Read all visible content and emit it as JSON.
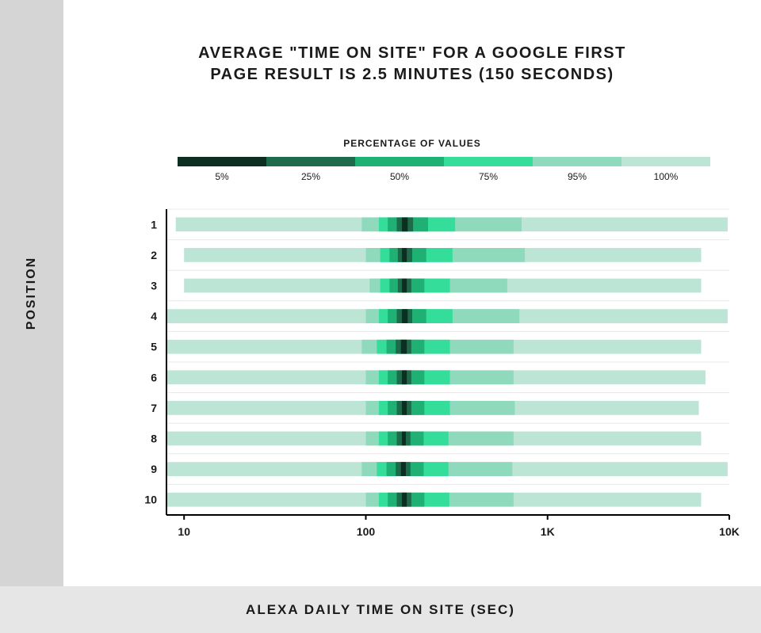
{
  "layout": {
    "sidebar_bg": "#d5d5d5",
    "footer_bg": "#e6e6e6",
    "title_color": "#1a1a1a",
    "label_color": "#1a1a1a",
    "tick_color": "#1a1a1a",
    "axis_color": "#000000",
    "grid_color": "#e8e8e8",
    "title_fontsize": 20,
    "ylabel_fontsize": 16,
    "xlabel_fontsize": 17,
    "legend_title_fontsize": 12,
    "legend_label_fontsize": 12,
    "tick_fontsize": 14,
    "legend_item_width": 112
  },
  "title_line1": "AVERAGE \"TIME ON SITE\" FOR A GOOGLE FIRST",
  "title_line2": "PAGE RESULT IS 2.5 MINUTES (150 SECONDS)",
  "y_axis_label": "POSITION",
  "x_axis_label": "ALEXA DAILY TIME ON SITE (SEC)",
  "legend_title": "PERCENTAGE OF VALUES",
  "legend": [
    {
      "label": "5%",
      "color": "#0c2f22"
    },
    {
      "label": "25%",
      "color": "#1e6b4b"
    },
    {
      "label": "50%",
      "color": "#1fb173"
    },
    {
      "label": "75%",
      "color": "#34dd9a"
    },
    {
      "label": "95%",
      "color": "#8fd9bd"
    },
    {
      "label": "100%",
      "color": "#bde5d6"
    }
  ],
  "chart": {
    "type": "horizontal-distribution-bands",
    "x_scale": "log",
    "xlim": [
      8,
      10000
    ],
    "x_ticks": [
      10,
      100,
      1000,
      10000
    ],
    "x_tick_labels": [
      "10",
      "100",
      "1K",
      "10K"
    ],
    "y_categories": [
      "1",
      "2",
      "3",
      "4",
      "5",
      "6",
      "7",
      "8",
      "9",
      "10"
    ],
    "bar_height_ratio": 0.46,
    "band_colors": {
      "p100": "#bde5d6",
      "p95": "#8fd9bd",
      "p75": "#34dd9a",
      "p50": "#1fb173",
      "p25": "#1e6b4b",
      "p5": "#0c2f22"
    },
    "rows": [
      {
        "pos": "1",
        "p100": [
          9,
          9800
        ],
        "p95": [
          95,
          720
        ],
        "p75": [
          118,
          310
        ],
        "p50": [
          132,
          220
        ],
        "p25": [
          148,
          182
        ],
        "p5": [
          158,
          170
        ]
      },
      {
        "pos": "2",
        "p100": [
          10,
          7000
        ],
        "p95": [
          100,
          750
        ],
        "p75": [
          120,
          300
        ],
        "p50": [
          135,
          215
        ],
        "p25": [
          150,
          180
        ],
        "p5": [
          158,
          168
        ]
      },
      {
        "pos": "3",
        "p100": [
          10,
          7000
        ],
        "p95": [
          105,
          600
        ],
        "p75": [
          120,
          290
        ],
        "p50": [
          135,
          210
        ],
        "p25": [
          150,
          178
        ],
        "p5": [
          158,
          168
        ]
      },
      {
        "pos": "4",
        "p100": [
          8,
          9800
        ],
        "p95": [
          100,
          700
        ],
        "p75": [
          118,
          300
        ],
        "p50": [
          132,
          215
        ],
        "p25": [
          148,
          180
        ],
        "p5": [
          158,
          170
        ]
      },
      {
        "pos": "5",
        "p100": [
          8,
          7000
        ],
        "p95": [
          95,
          650
        ],
        "p75": [
          115,
          290
        ],
        "p50": [
          130,
          210
        ],
        "p25": [
          146,
          178
        ],
        "p5": [
          156,
          168
        ]
      },
      {
        "pos": "6",
        "p100": [
          8,
          7400
        ],
        "p95": [
          100,
          650
        ],
        "p75": [
          118,
          290
        ],
        "p50": [
          132,
          210
        ],
        "p25": [
          148,
          178
        ],
        "p5": [
          158,
          168
        ]
      },
      {
        "pos": "7",
        "p100": [
          8,
          6800
        ],
        "p95": [
          100,
          660
        ],
        "p75": [
          118,
          290
        ],
        "p50": [
          132,
          210
        ],
        "p25": [
          148,
          178
        ],
        "p5": [
          158,
          168
        ]
      },
      {
        "pos": "8",
        "p100": [
          8,
          7000
        ],
        "p95": [
          100,
          650
        ],
        "p75": [
          118,
          285
        ],
        "p50": [
          132,
          208
        ],
        "p25": [
          148,
          176
        ],
        "p5": [
          158,
          166
        ]
      },
      {
        "pos": "9",
        "p100": [
          8,
          9800
        ],
        "p95": [
          95,
          640
        ],
        "p75": [
          115,
          285
        ],
        "p50": [
          130,
          208
        ],
        "p25": [
          146,
          176
        ],
        "p5": [
          156,
          166
        ]
      },
      {
        "pos": "10",
        "p100": [
          8,
          7000
        ],
        "p95": [
          100,
          650
        ],
        "p75": [
          118,
          288
        ],
        "p50": [
          132,
          210
        ],
        "p25": [
          148,
          178
        ],
        "p5": [
          158,
          168
        ]
      }
    ]
  }
}
